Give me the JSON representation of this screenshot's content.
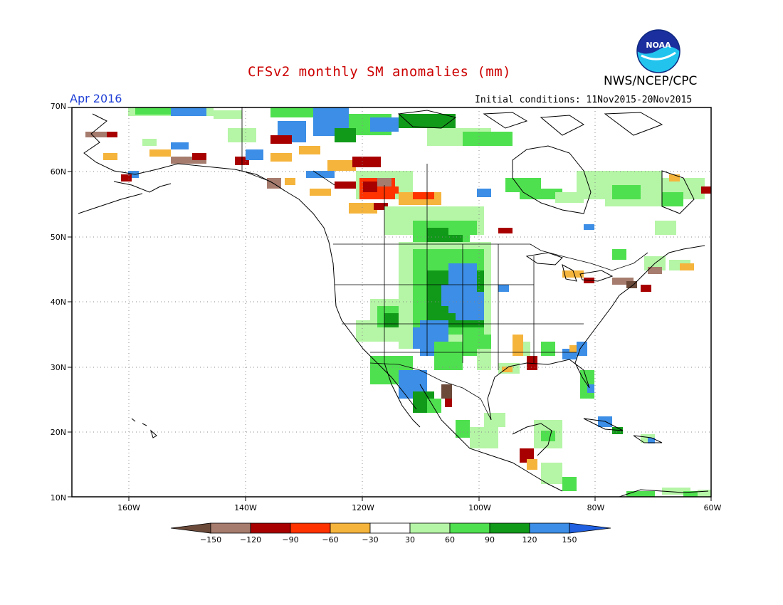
{
  "header": {
    "title": "CFSv2 monthly SM anomalies (mm)",
    "agency": "NWS/NCEP/CPC",
    "valid_month": "Apr 2016",
    "initial_conditions": "Initial conditions: 11Nov2015-20Nov2015"
  },
  "logo": {
    "text": "NOAA"
  },
  "axes": {
    "lat_labels": [
      "70N",
      "60N",
      "50N",
      "40N",
      "30N",
      "20N",
      "10N"
    ],
    "lon_labels": [
      "160W",
      "140W",
      "120W",
      "100W",
      "80W",
      "60W"
    ]
  },
  "colorbar": {
    "labels": [
      "-150",
      "-120",
      "-90",
      "-60",
      "-30",
      "30",
      "60",
      "90",
      "120",
      "150"
    ],
    "colors": [
      "#6b4a3a",
      "#a67c6e",
      "#a80000",
      "#ff3300",
      "#f5b43c",
      "#ffffff",
      "#b5f5a6",
      "#4fe04f",
      "#119a19",
      "#3c8ee6",
      "#1f5fe0"
    ]
  },
  "colors": {
    "title": "#cc0000",
    "valid_month": "#1f3fd6"
  }
}
